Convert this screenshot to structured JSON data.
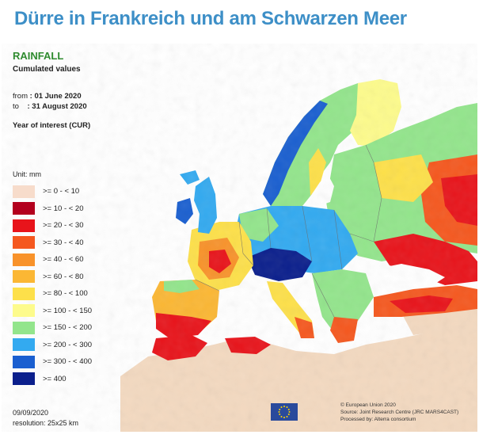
{
  "headline": "Dürre in Frankreich und am Schwarzen Meer",
  "map": {
    "title": "RAINFALL",
    "subtitle": "Cumulated values",
    "from_label": "from",
    "from_value": ": 01 June 2020",
    "to_label": "to",
    "to_value": ": 31 August 2020",
    "year_of_interest": "Year of interest (CUR)",
    "unit": "Unit: mm",
    "legend": [
      {
        "label": ">= 0 - < 10",
        "color": "#f7dccb"
      },
      {
        "label": ">= 10 - < 20",
        "color": "#b3001e"
      },
      {
        "label": ">= 20 - < 30",
        "color": "#e8141b"
      },
      {
        "label": ">= 30 - < 40",
        "color": "#f5581f"
      },
      {
        "label": ">= 40 - < 60",
        "color": "#f8922a"
      },
      {
        "label": ">= 60 - < 80",
        "color": "#fbb734"
      },
      {
        "label": ">= 80 - < 100",
        "color": "#fde04a"
      },
      {
        "label": ">= 100 - < 150",
        "color": "#fdfb8c"
      },
      {
        "label": ">= 150 - < 200",
        "color": "#93e58c"
      },
      {
        "label": ">= 200 - < 300",
        "color": "#33aaf0"
      },
      {
        "label": ">= 300 - < 400",
        "color": "#1a5fd0"
      },
      {
        "label": ">= 400",
        "color": "#0b1f8c"
      }
    ],
    "date": "09/09/2020",
    "resolution": "resolution: 25x25 km",
    "credits": [
      "© European Union 2020",
      "Source: Joint Research Centre (JRC MARS4CAST)",
      "Processed by: Alterra consortium"
    ],
    "colors": {
      "sea": "#ffffff",
      "africa_land": "#f3d9c0",
      "borders": "#6b6b6b"
    }
  }
}
